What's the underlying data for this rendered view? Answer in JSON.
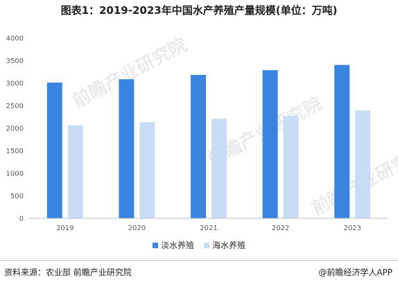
{
  "title": "图表1：2019-2023年中国水产养殖产量规模(单位：万吨)",
  "source": "资料来源：农业部 前瞻产业研究院",
  "brand": "@前瞻经济学人APP",
  "watermark": "前瞻产业研究院",
  "colors": {
    "freshwater": "#3a84e0",
    "marine": "#c9dcf5",
    "grid": "#d9d9d9"
  },
  "chart_data": {
    "type": "bar",
    "categories": [
      "2019",
      "2020",
      "2021",
      "2022",
      "2023"
    ],
    "series": [
      {
        "name": "淡水养殖",
        "values": [
          3013,
          3088,
          3183,
          3289,
          3405
        ]
      },
      {
        "name": "海水养殖",
        "values": [
          2065,
          2135,
          2212,
          2276,
          2395
        ]
      }
    ],
    "ylim": [
      0,
      4000
    ],
    "yticks": [
      "0",
      "500",
      "1000",
      "1500",
      "2000",
      "2500",
      "3000",
      "3500",
      "4000"
    ],
    "legend": "bottom",
    "grid": false
  }
}
